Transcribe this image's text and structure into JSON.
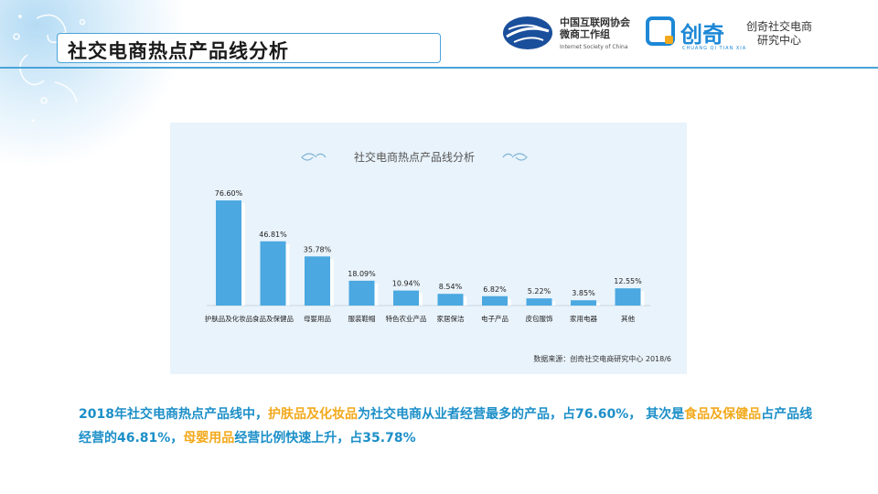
{
  "page": {
    "title": "社交电商热点产品线分析"
  },
  "logos": {
    "isc_cn_line1": "中国互联网协会",
    "isc_cn_line2": "微商工作组",
    "isc_en": "Internet Society of China",
    "chuangqi_name": "创奇",
    "chuangqi_pinyin": "CHUANG QI TIAN XIA",
    "center_line1": "创奇社交电商",
    "center_line2": "研究中心"
  },
  "chart_data": {
    "type": "bar",
    "title": "社交电商热点产品线分析",
    "categories": [
      "护肤品及化妆品",
      "食品及保健品",
      "母婴用品",
      "服装鞋帽",
      "特色农业产品",
      "家居保洁",
      "电子产品",
      "皮包服饰",
      "家用电器",
      "其他"
    ],
    "values": [
      76.6,
      46.81,
      35.78,
      18.09,
      10.94,
      8.54,
      6.82,
      5.22,
      3.85,
      12.55
    ],
    "value_labels": [
      "76.60%",
      "46.81%",
      "35.78%",
      "18.09%",
      "10.94%",
      "8.54%",
      "6.82%",
      "5.22%",
      "3.85%",
      "12.55%"
    ],
    "ylim": [
      0,
      80
    ],
    "grid": false,
    "bar_color": "#4ba8e0",
    "source": "数据来源：创奇社交电商研究中心 2018/6"
  },
  "summary": {
    "s1": "2018年社交电商热点产品线中，",
    "h1": "护肤品及化妆品",
    "s2": "为社交电商从业者经营最多的产品，占76.60%，  其次是",
    "h2": "食品及保健品",
    "s3": "占产品线经营的46.81%，",
    "h3": "母婴用品",
    "s4": "经营比例快速上升，占35.78%"
  },
  "colors": {
    "accent": "#4aa3d8",
    "summary_text": "#1c8fc8",
    "highlight": "#f2a91c"
  }
}
